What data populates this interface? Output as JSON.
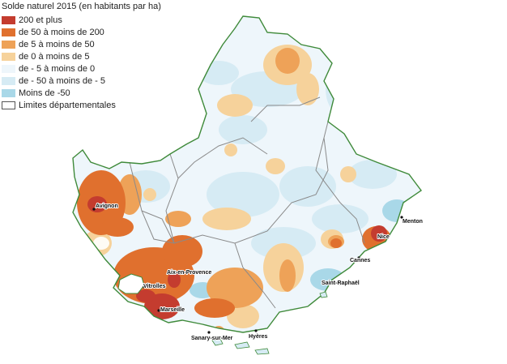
{
  "legend": {
    "title": "Solde naturel 2015 (en habitants par ha)",
    "items": [
      {
        "label": "200 et plus",
        "color": "#c43c2f"
      },
      {
        "label": "de 50 à moins de 200",
        "color": "#e0702e"
      },
      {
        "label": "de 5 à moins de 50",
        "color": "#eea258"
      },
      {
        "label": "de 0 à moins de 5",
        "color": "#f6d29b"
      },
      {
        "label": "de - 5 à moins de 0",
        "color": "#eef6fb"
      },
      {
        "label": "de - 50 à moins de - 5",
        "color": "#d6ebf4"
      },
      {
        "label": "Moins de -50",
        "color": "#a9d8e8"
      },
      {
        "label": "Limites départementales",
        "color": "#ffffff",
        "border": "#555555"
      }
    ]
  },
  "cities": {
    "avignon": "Avignon",
    "aix": "Aix-en-Provence",
    "vitrolles": "Vitrolles",
    "marseille": "Marseille",
    "sanary": "Sanary-sur-Mer",
    "hyeres": "Hyères",
    "saint_raphael": "Saint-Raphaël",
    "cannes": "Cannes",
    "nice": "Nice",
    "menton": "Menton"
  },
  "colors": {
    "region_border": "#3f8a3a",
    "dept_border": "#8a8a8a",
    "background_fill": "#eef6fb",
    "sea": "#ffffff"
  }
}
